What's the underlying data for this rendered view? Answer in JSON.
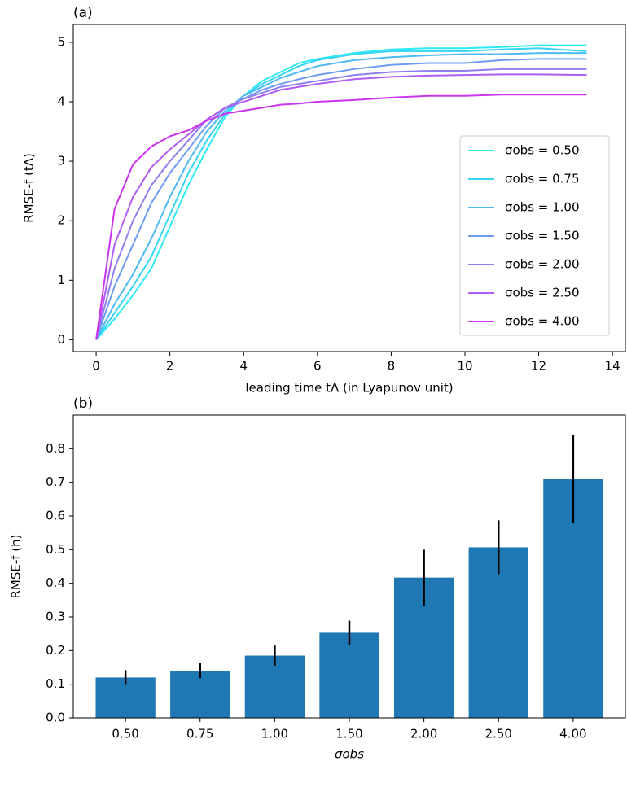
{
  "chart_data": [
    {
      "type": "line",
      "panel_label": "(a)",
      "ylabel": "RMSE-f (tΛ)",
      "xlabel": "leading time tΛ (in Lyapunov unit)",
      "x": [
        0,
        0.5,
        1,
        1.5,
        2,
        2.5,
        3,
        3.5,
        4,
        4.5,
        5,
        5.5,
        6,
        7,
        8,
        9,
        10,
        11,
        12,
        13.3
      ],
      "series": [
        {
          "name": "σobs = 0.50",
          "color": "#2fe9f3",
          "values": [
            0,
            0.35,
            0.75,
            1.2,
            1.9,
            2.6,
            3.2,
            3.75,
            4.1,
            4.35,
            4.5,
            4.65,
            4.72,
            4.82,
            4.88,
            4.9,
            4.9,
            4.92,
            4.95,
            4.95
          ]
        },
        {
          "name": "σobs = 0.75",
          "color": "#38d4f3",
          "values": [
            0,
            0.45,
            0.9,
            1.4,
            2.1,
            2.8,
            3.35,
            3.8,
            4.1,
            4.3,
            4.45,
            4.6,
            4.7,
            4.8,
            4.85,
            4.85,
            4.85,
            4.88,
            4.9,
            4.85
          ]
        },
        {
          "name": "σobs = 1.00",
          "color": "#4db9f5",
          "values": [
            0,
            0.6,
            1.1,
            1.7,
            2.4,
            3.0,
            3.5,
            3.85,
            4.1,
            4.25,
            4.4,
            4.5,
            4.6,
            4.7,
            4.75,
            4.78,
            4.8,
            4.8,
            4.82,
            4.82
          ]
        },
        {
          "name": "σobs = 1.50",
          "color": "#6e9cf2",
          "values": [
            0,
            0.9,
            1.6,
            2.3,
            2.8,
            3.2,
            3.6,
            3.9,
            4.05,
            4.2,
            4.3,
            4.38,
            4.45,
            4.55,
            4.62,
            4.65,
            4.65,
            4.7,
            4.72,
            4.72
          ]
        },
        {
          "name": "σobs = 2.00",
          "color": "#9080ef",
          "values": [
            0,
            1.2,
            2.0,
            2.6,
            3.0,
            3.35,
            3.7,
            3.9,
            4.05,
            4.15,
            4.25,
            4.3,
            4.35,
            4.45,
            4.5,
            4.52,
            4.52,
            4.55,
            4.55,
            4.55
          ]
        },
        {
          "name": "σobs = 2.50",
          "color": "#b15cf0",
          "values": [
            0,
            1.6,
            2.4,
            2.9,
            3.2,
            3.45,
            3.7,
            3.9,
            4.0,
            4.1,
            4.2,
            4.25,
            4.3,
            4.38,
            4.42,
            4.44,
            4.45,
            4.46,
            4.46,
            4.45
          ]
        },
        {
          "name": "σobs = 4.00",
          "color": "#cc33ee",
          "values": [
            0,
            2.2,
            2.95,
            3.25,
            3.42,
            3.52,
            3.68,
            3.8,
            3.85,
            3.9,
            3.95,
            3.97,
            4.0,
            4.03,
            4.07,
            4.1,
            4.1,
            4.12,
            4.12,
            4.12
          ]
        }
      ],
      "xlim": [
        -0.62,
        14.35
      ],
      "xticks": [
        0,
        2,
        4,
        6,
        8,
        10,
        12,
        14
      ],
      "ylim": [
        -0.2,
        5.3
      ],
      "yticks": [
        0,
        1,
        2,
        3,
        4,
        5
      ],
      "legend": "lower right"
    },
    {
      "type": "bar",
      "panel_label": "(b)",
      "ylabel": "RMSE-f (h)",
      "xlabel": "σobs",
      "categories": [
        "0.50",
        "0.75",
        "1.00",
        "1.50",
        "2.00",
        "2.50",
        "4.00"
      ],
      "values": [
        0.12,
        0.14,
        0.185,
        0.253,
        0.417,
        0.507,
        0.71
      ],
      "errors": [
        0.022,
        0.022,
        0.03,
        0.036,
        0.083,
        0.08,
        0.13
      ],
      "color": "#1f77b4",
      "error_color": "#000000",
      "ylim": [
        0,
        0.9
      ],
      "yticks": [
        {
          "value": 0,
          "label": "0.0"
        },
        0.1,
        0.2,
        0.3,
        0.4,
        0.5,
        0.6,
        0.7,
        0.8
      ]
    }
  ]
}
